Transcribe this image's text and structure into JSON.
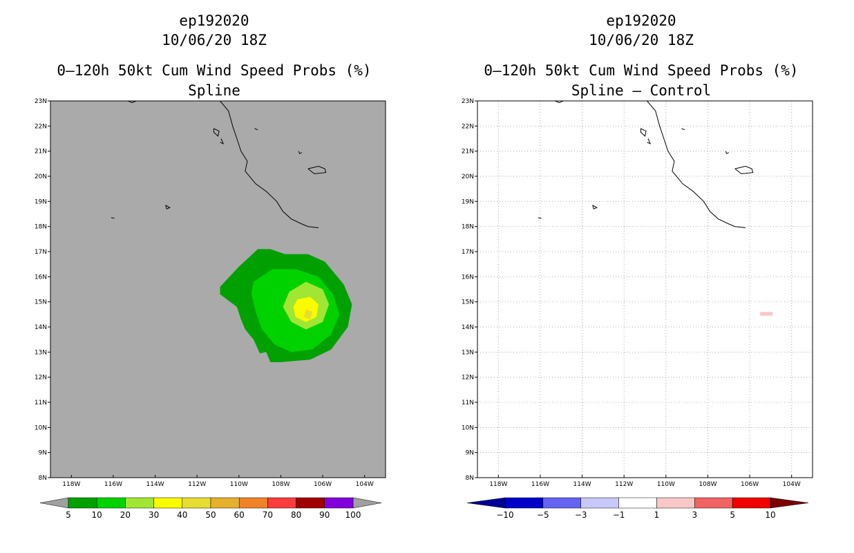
{
  "left": {
    "storm_id": "ep192020",
    "date": "10/06/20 18Z",
    "title_line1": "0–120h 50kt Cum Wind Speed Probs (%)",
    "title_line2": "Spline",
    "background_color": "#aaaaaa"
  },
  "right": {
    "storm_id": "ep192020",
    "date": "10/06/20 18Z",
    "title_line1": "0–120h 50kt Cum Wind Speed Probs (%)",
    "title_line2": "Spline – Control",
    "background_color": "#ffffff"
  },
  "lat_labels": [
    "23N",
    "22N",
    "21N",
    "20N",
    "19N",
    "18N",
    "17N",
    "16N",
    "15N",
    "14N",
    "13N",
    "12N",
    "11N",
    "10N",
    "9N",
    "8N"
  ],
  "lon_labels": [
    "118W",
    "116W",
    "114W",
    "112W",
    "110W",
    "108W",
    "106W",
    "104W"
  ],
  "left_colorbar": {
    "labels": [
      "5",
      "10",
      "20",
      "30",
      "40",
      "50",
      "60",
      "70",
      "80",
      "90",
      "100"
    ],
    "colors": [
      "#00a000",
      "#00d200",
      "#a0e632",
      "#fafa00",
      "#e6dc32",
      "#e6af2d",
      "#f08228",
      "#fa3c3c",
      "#a00000",
      "#8200dc"
    ],
    "under_color": "#a0a0a0",
    "over_color": "#a0a0a0"
  },
  "right_colorbar": {
    "labels": [
      "−10",
      "−5",
      "−3",
      "−1",
      "1",
      "3",
      "5",
      "10"
    ],
    "colors": [
      "#0000c8",
      "#6464f0",
      "#c8c8fa",
      "#ffffff",
      "#fac8c8",
      "#f06464",
      "#f00000"
    ],
    "under_color": "#000096",
    "over_color": "#780000"
  },
  "chart_data": [
    {
      "type": "heatmap",
      "title": "0–120h 50kt Cum Wind Speed Probs (%) — Spline",
      "xlim": [
        -119,
        -103
      ],
      "ylim": [
        8,
        23
      ],
      "levels": [
        5,
        10,
        20,
        30,
        40,
        50,
        60,
        70,
        80,
        90,
        100
      ],
      "regions": [
        {
          "level": 5,
          "polygon": [
            [
              -110.9,
              15.6
            ],
            [
              -110.0,
              16.4
            ],
            [
              -109.1,
              17.1
            ],
            [
              -108.5,
              17.1
            ],
            [
              -107.8,
              16.9
            ],
            [
              -106.7,
              16.9
            ],
            [
              -105.9,
              16.6
            ],
            [
              -105.0,
              15.7
            ],
            [
              -104.6,
              14.9
            ],
            [
              -104.8,
              14.0
            ],
            [
              -105.6,
              13.1
            ],
            [
              -106.6,
              12.7
            ],
            [
              -108.0,
              12.6
            ],
            [
              -108.5,
              12.6
            ],
            [
              -108.7,
              13.0
            ],
            [
              -109.0,
              12.95
            ],
            [
              -109.3,
              13.5
            ],
            [
              -109.7,
              13.9
            ],
            [
              -109.9,
              14.3
            ],
            [
              -110.1,
              14.8
            ],
            [
              -110.9,
              15.3
            ]
          ]
        },
        {
          "level": 10,
          "polygon": [
            [
              -109.3,
              15.8
            ],
            [
              -108.4,
              16.3
            ],
            [
              -107.3,
              16.3
            ],
            [
              -106.2,
              16.0
            ],
            [
              -105.5,
              15.3
            ],
            [
              -105.2,
              14.5
            ],
            [
              -105.6,
              13.7
            ],
            [
              -106.5,
              13.1
            ],
            [
              -107.5,
              13.0
            ],
            [
              -108.3,
              13.3
            ],
            [
              -108.9,
              13.9
            ],
            [
              -109.2,
              14.6
            ],
            [
              -109.4,
              15.3
            ]
          ]
        },
        {
          "level": 20,
          "polygon": [
            [
              -107.6,
              15.4
            ],
            [
              -106.8,
              15.8
            ],
            [
              -106.0,
              15.5
            ],
            [
              -105.7,
              14.9
            ],
            [
              -106.0,
              14.2
            ],
            [
              -106.8,
              13.9
            ],
            [
              -107.5,
              14.2
            ],
            [
              -107.9,
              14.8
            ]
          ]
        },
        {
          "level": 30,
          "polygon": [
            [
              -107.2,
              15.1
            ],
            [
              -106.6,
              15.2
            ],
            [
              -106.2,
              14.9
            ],
            [
              -106.3,
              14.4
            ],
            [
              -106.8,
              14.2
            ],
            [
              -107.3,
              14.4
            ],
            [
              -107.4,
              14.8
            ]
          ]
        },
        {
          "level": 40,
          "polygon": [
            [
              -106.8,
              14.7
            ],
            [
              -106.5,
              14.6
            ],
            [
              -106.6,
              14.3
            ],
            [
              -106.9,
              14.4
            ]
          ]
        }
      ]
    },
    {
      "type": "heatmap",
      "title": "0–120h 50kt Cum Wind Speed Probs (%) — Spline – Control",
      "xlim": [
        -119,
        -103
      ],
      "ylim": [
        8,
        23
      ],
      "levels": [
        -10,
        -5,
        -3,
        -1,
        1,
        3,
        5,
        10
      ],
      "regions": [
        {
          "level": 1,
          "polygon": [
            [
              -105.5,
              14.6
            ],
            [
              -104.9,
              14.6
            ],
            [
              -104.9,
              14.45
            ],
            [
              -105.5,
              14.45
            ]
          ]
        }
      ]
    }
  ]
}
